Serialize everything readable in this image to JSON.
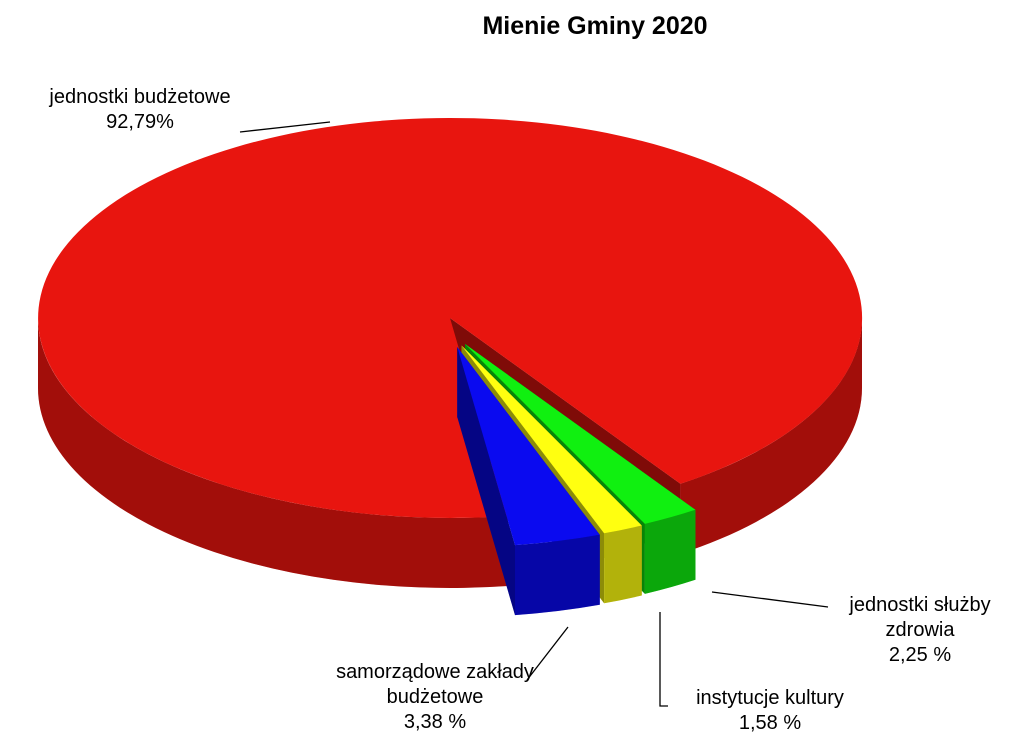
{
  "chart_data": {
    "type": "pie",
    "title": "Mienie Gminy 2020",
    "categories": [
      "jednostki budżetowe",
      "samorządowe zakłady budżetowe",
      "instytucje kultury",
      "jednostki służby zdrowia"
    ],
    "values": [
      92.79,
      3.38,
      1.58,
      2.25
    ],
    "value_labels": [
      "92,79%",
      "3,38 %",
      "1,58 %",
      "2,25 %"
    ],
    "colors": [
      "#e8150f",
      "#0a0af0",
      "#ffff10",
      "#10f010"
    ]
  }
}
